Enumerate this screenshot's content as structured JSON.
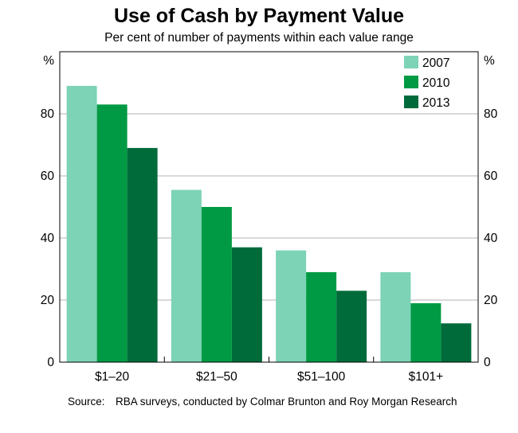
{
  "chart_data": {
    "type": "bar",
    "title": "Use of Cash by Payment Value",
    "subtitle": "Per cent of number of payments within each value range",
    "ylabel_left": "%",
    "ylabel_right": "%",
    "ylim": [
      0,
      100
    ],
    "yticks": [
      0,
      20,
      40,
      60,
      80
    ],
    "grid": true,
    "legend_position": "top-right",
    "categories": [
      "$1–20",
      "$21–50",
      "$51–100",
      "$101+"
    ],
    "series": [
      {
        "name": "2007",
        "color": "#7dd3b5",
        "values": [
          89,
          55.5,
          36,
          29
        ]
      },
      {
        "name": "2010",
        "color": "#009a44",
        "values": [
          83,
          50,
          29,
          19
        ]
      },
      {
        "name": "2013",
        "color": "#006b3a",
        "values": [
          69,
          37,
          23,
          12.5
        ]
      }
    ]
  },
  "source": {
    "label": "Source:",
    "text": "RBA surveys, conducted by Colmar Brunton and Roy Morgan Research"
  }
}
